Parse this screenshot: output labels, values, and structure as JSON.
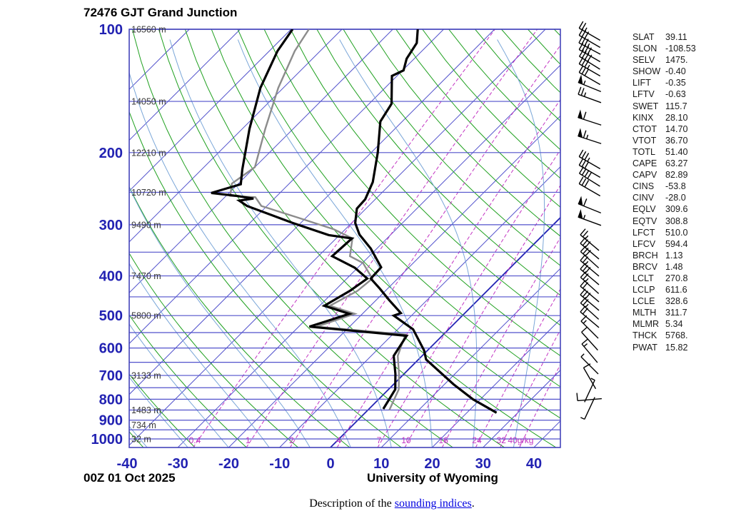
{
  "title": "72476 GJT Grand Junction",
  "footer_left": "00Z 01 Oct 2025",
  "footer_right": "University of Wyoming",
  "caption": {
    "prefix": "Description of the ",
    "link_text": "sounding indices",
    "suffix": "."
  },
  "indices": [
    {
      "label": "SLAT",
      "value": "39.11"
    },
    {
      "label": "SLON",
      "value": "-108.53"
    },
    {
      "label": "SELV",
      "value": "1475."
    },
    {
      "label": "SHOW",
      "value": "-0.40"
    },
    {
      "label": "LIFT",
      "value": "-0.35"
    },
    {
      "label": "LFTV",
      "value": "-0.63"
    },
    {
      "label": "SWET",
      "value": "115.7"
    },
    {
      "label": "KINX",
      "value": "28.10"
    },
    {
      "label": "CTOT",
      "value": "14.70"
    },
    {
      "label": "VTOT",
      "value": "36.70"
    },
    {
      "label": "TOTL",
      "value": "51.40"
    },
    {
      "label": "CAPE",
      "value": "63.27"
    },
    {
      "label": "CAPV",
      "value": "82.89"
    },
    {
      "label": "CINS",
      "value": "-53.8"
    },
    {
      "label": "CINV",
      "value": "-28.0"
    },
    {
      "label": "EQLV",
      "value": "309.6"
    },
    {
      "label": "EQTV",
      "value": "308.8"
    },
    {
      "label": "LFCT",
      "value": "510.0"
    },
    {
      "label": "LFCV",
      "value": "594.4"
    },
    {
      "label": "BRCH",
      "value": "1.13"
    },
    {
      "label": "BRCV",
      "value": "1.48"
    },
    {
      "label": "LCLT",
      "value": "270.8"
    },
    {
      "label": "LCLP",
      "value": "611.6"
    },
    {
      "label": "LCLE",
      "value": "328.6"
    },
    {
      "label": "MLTH",
      "value": "311.7"
    },
    {
      "label": "MLMR",
      "value": "5.34"
    },
    {
      "label": "THCK",
      "value": "5768."
    },
    {
      "label": "PWAT",
      "value": "15.82"
    }
  ],
  "chart_data": {
    "type": "skewt-log-p",
    "title": "72476 GJT Grand Junction",
    "station": "72476 GJT",
    "time": "00Z 01 Oct 2025",
    "pressure_ticks": [
      100,
      200,
      300,
      400,
      500,
      600,
      700,
      800,
      900,
      1000
    ],
    "pressure_range": [
      100,
      1050
    ],
    "isobar_step": 50,
    "temp_ticks": [
      -40,
      -30,
      -20,
      -10,
      0,
      10,
      20,
      30,
      40
    ],
    "temp_unit": "C",
    "skew_deg": 45,
    "grid_on": true,
    "height_labels": [
      {
        "p": 100,
        "text": "16560 m"
      },
      {
        "p": 150,
        "text": "14050 m"
      },
      {
        "p": 200,
        "text": "12210 m"
      },
      {
        "p": 250,
        "text": "10720 m"
      },
      {
        "p": 300,
        "text": "9490 m"
      },
      {
        "p": 400,
        "text": "7470 m"
      },
      {
        "p": 500,
        "text": "5800 m"
      },
      {
        "p": 700,
        "text": "3133 m"
      },
      {
        "p": 850,
        "text": "1483 m"
      },
      {
        "p": 925,
        "text": "734 m"
      },
      {
        "p": 1000,
        "text": "32 m"
      }
    ],
    "mixing_ratios": [
      0.4,
      1,
      2,
      4,
      7,
      10,
      16,
      24,
      32,
      40
    ],
    "mixing_ratio_last_label": "40g/kg",
    "temperature_profile": [
      [
        100,
        -65.1
      ],
      [
        108,
        -62.6
      ],
      [
        118,
        -61.5
      ],
      [
        126,
        -59.8
      ],
      [
        130,
        -61.0
      ],
      [
        152,
        -55.6
      ],
      [
        168,
        -54.3
      ],
      [
        200,
        -48.7
      ],
      [
        236,
        -43.9
      ],
      [
        260,
        -42.0
      ],
      [
        274,
        -41.8
      ],
      [
        297,
        -39.3
      ],
      [
        317,
        -36.2
      ],
      [
        343,
        -31.2
      ],
      [
        381,
        -25.5
      ],
      [
        406,
        -25.3
      ],
      [
        430,
        -21.5
      ],
      [
        458,
        -17.5
      ],
      [
        493,
        -12.6
      ],
      [
        500,
        -13.5
      ],
      [
        540,
        -7.0
      ],
      [
        608,
        -0.7
      ],
      [
        640,
        1.5
      ],
      [
        736,
        11.8
      ],
      [
        800,
        18.5
      ],
      [
        863,
        25.8
      ]
    ],
    "dewpoint_profile": [
      [
        100,
        -89.7
      ],
      [
        113,
        -88.4
      ],
      [
        139,
        -84.5
      ],
      [
        175,
        -78.6
      ],
      [
        220,
        -72.0
      ],
      [
        239,
        -69.4
      ],
      [
        245,
        -71.5
      ],
      [
        251,
        -73.5
      ],
      [
        255,
        -68.0
      ],
      [
        259,
        -64.1
      ],
      [
        262,
        -66.5
      ],
      [
        270,
        -63.9
      ],
      [
        297,
        -51.6
      ],
      [
        318,
        -42.1
      ],
      [
        324,
        -36.9
      ],
      [
        358,
        -37.3
      ],
      [
        382,
        -30.6
      ],
      [
        406,
        -26.0
      ],
      [
        435,
        -27.0
      ],
      [
        473,
        -29.1
      ],
      [
        495,
        -22.6
      ],
      [
        515,
        -25.5
      ],
      [
        532,
        -27.9
      ],
      [
        560,
        -7.0
      ],
      [
        627,
        -5.6
      ],
      [
        694,
        -1.7
      ],
      [
        757,
        1.3
      ],
      [
        845,
        2.8
      ]
    ],
    "parcel_profile": [
      [
        100,
        -86.5
      ],
      [
        113,
        -85.0
      ],
      [
        139,
        -81.0
      ],
      [
        175,
        -75.5
      ],
      [
        217,
        -70.0
      ],
      [
        238,
        -71.3
      ],
      [
        255,
        -69.2
      ],
      [
        257,
        -64.0
      ],
      [
        270,
        -61.1
      ],
      [
        289,
        -51.2
      ],
      [
        308,
        -42.2
      ],
      [
        324,
        -36.8
      ],
      [
        358,
        -33.8
      ],
      [
        372,
        -29.9
      ],
      [
        406,
        -25.0
      ],
      [
        435,
        -25.5
      ],
      [
        473,
        -28.0
      ],
      [
        495,
        -21.5
      ],
      [
        532,
        -26.5
      ],
      [
        556,
        -7.5
      ],
      [
        627,
        -4.8
      ],
      [
        694,
        -1.0
      ],
      [
        757,
        2.0
      ],
      [
        850,
        4.2
      ]
    ],
    "wind_barbs_y_dir_flags_full_half": [
      [
        48,
        150,
        0,
        2,
        1
      ],
      [
        58,
        150,
        0,
        3,
        0
      ],
      [
        68,
        152,
        0,
        3,
        1
      ],
      [
        78,
        150,
        0,
        4,
        0
      ],
      [
        88,
        148,
        0,
        4,
        0
      ],
      [
        98,
        150,
        0,
        3,
        1
      ],
      [
        110,
        150,
        0,
        3,
        0
      ],
      [
        122,
        158,
        1,
        0,
        1
      ],
      [
        138,
        160,
        0,
        2,
        1
      ],
      [
        170,
        162,
        1,
        1,
        0
      ],
      [
        196,
        162,
        1,
        1,
        1
      ],
      [
        228,
        150,
        0,
        3,
        1
      ],
      [
        240,
        150,
        0,
        3,
        0
      ],
      [
        252,
        148,
        0,
        4,
        0
      ],
      [
        266,
        150,
        0,
        3,
        0
      ],
      [
        292,
        158,
        1,
        1,
        0
      ],
      [
        310,
        160,
        1,
        0,
        1
      ],
      [
        340,
        140,
        0,
        2,
        1
      ],
      [
        352,
        140,
        0,
        3,
        0
      ],
      [
        364,
        138,
        0,
        3,
        0
      ],
      [
        376,
        140,
        0,
        2,
        1
      ],
      [
        388,
        140,
        0,
        3,
        0
      ],
      [
        400,
        138,
        0,
        2,
        1
      ],
      [
        412,
        140,
        0,
        2,
        0
      ],
      [
        424,
        140,
        0,
        3,
        0
      ],
      [
        436,
        138,
        0,
        2,
        1
      ],
      [
        448,
        140,
        0,
        2,
        0
      ],
      [
        462,
        135,
        0,
        1,
        1
      ],
      [
        478,
        132,
        0,
        1,
        0
      ],
      [
        495,
        130,
        0,
        1,
        1
      ],
      [
        512,
        135,
        0,
        0,
        1
      ],
      [
        530,
        120,
        0,
        1,
        0
      ],
      [
        548,
        65,
        0,
        0,
        1
      ],
      [
        560,
        185,
        0,
        1,
        0
      ],
      [
        572,
        245,
        0,
        0,
        1
      ]
    ],
    "colors": {
      "isobar": "#5252cc",
      "isotherm": "#5252cc",
      "isotherm_zero": "#2424b4",
      "dry_adiabat": "#1fa01f",
      "moist_adiabat": "#7aa6d8",
      "mixing_ratio": "#c233c2",
      "temperature": "#000000",
      "dewpoint": "#000000",
      "parcel": "#8c8c8c",
      "axis_label": "#2222b2",
      "height_label": "#3a3a3a",
      "border": "#4444bb"
    }
  }
}
